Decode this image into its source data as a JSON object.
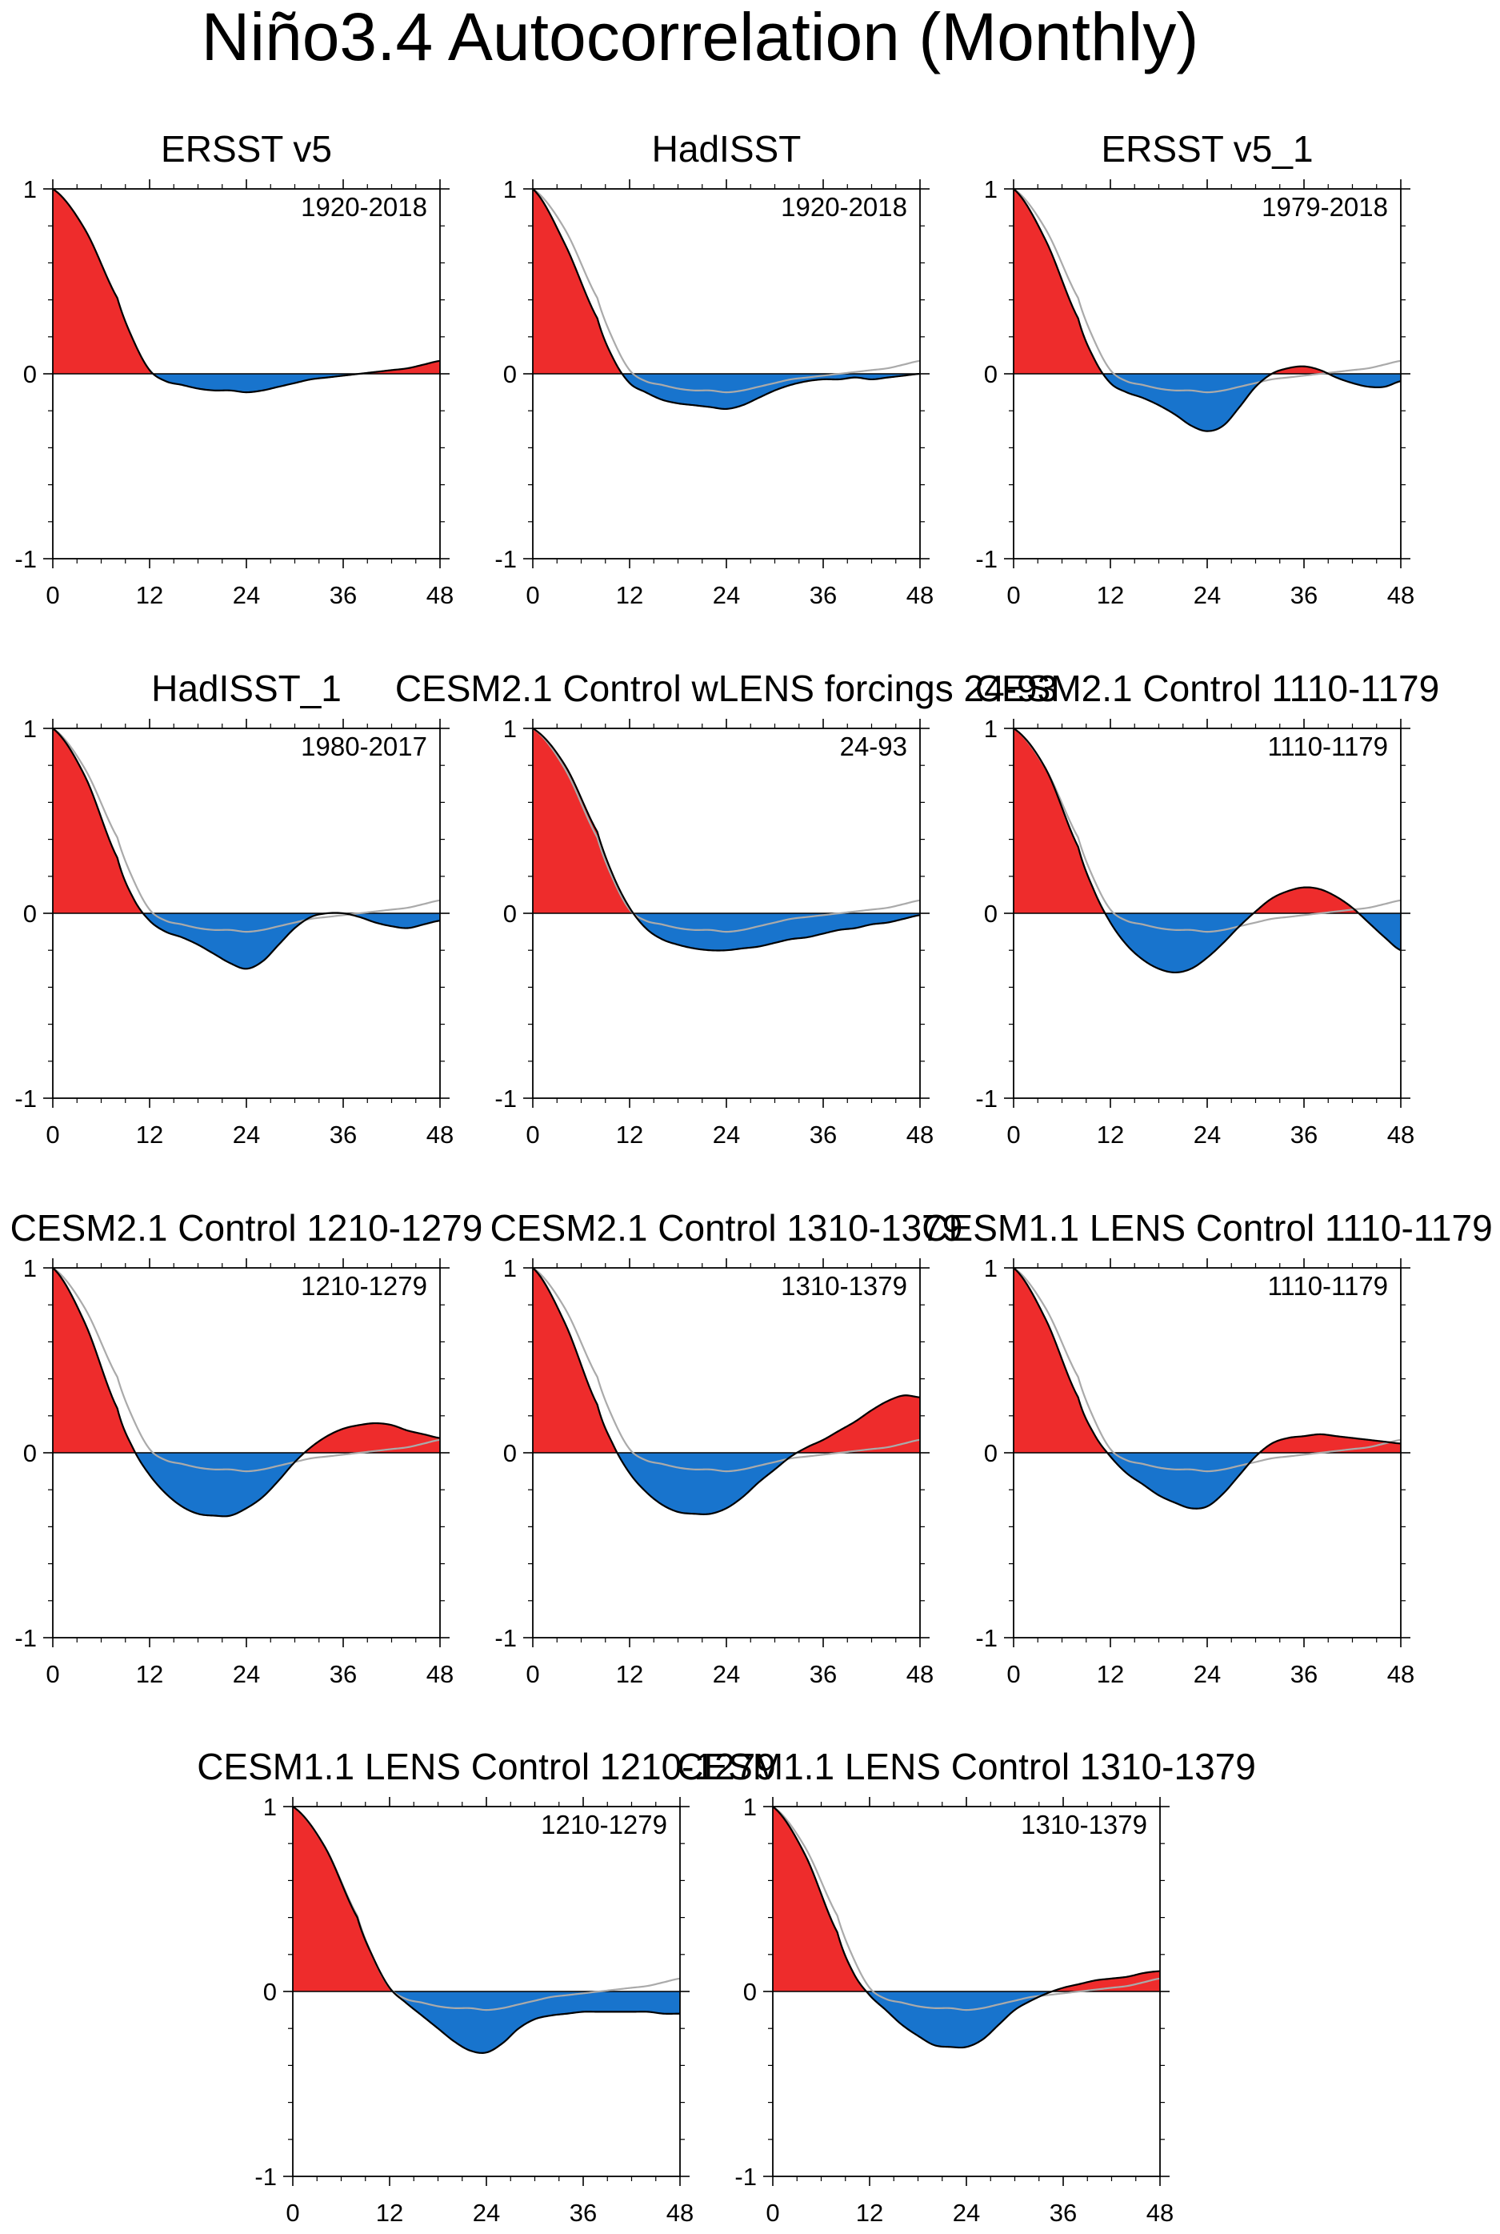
{
  "figure": {
    "title": "Niño3.4 Autocorrelation (Monthly)"
  },
  "colors": {
    "positive": "#ee2c2c",
    "negative": "#1874cd",
    "curve": "#000000",
    "reference": "#aaaaaa"
  },
  "axes": {
    "x_ticks": [
      0,
      12,
      24,
      36,
      48
    ],
    "y_ticks": [
      -1,
      0,
      1
    ],
    "xlim": [
      0,
      48
    ],
    "ylim": [
      -1,
      1
    ]
  },
  "chart_data": [
    {
      "type": "area",
      "title": "ERSST v5",
      "period": "1920-2018",
      "show_reference": false,
      "x": [
        0,
        4,
        8,
        10,
        12,
        14,
        16,
        18,
        20,
        22,
        24,
        26,
        28,
        30,
        32,
        34,
        36,
        38,
        40,
        42,
        44,
        46,
        48
      ],
      "y": [
        1.0,
        0.78,
        0.41,
        0.18,
        0.02,
        -0.04,
        -0.06,
        -0.08,
        -0.09,
        -0.09,
        -0.1,
        -0.09,
        -0.07,
        -0.05,
        -0.03,
        -0.02,
        -0.01,
        0.0,
        0.01,
        0.02,
        0.03,
        0.05,
        0.07
      ]
    },
    {
      "type": "area",
      "title": "HadISST",
      "period": "1920-2018",
      "show_reference": true,
      "x": [
        0,
        4,
        8,
        10,
        12,
        14,
        16,
        18,
        20,
        22,
        24,
        26,
        28,
        30,
        32,
        34,
        36,
        38,
        40,
        42,
        44,
        46,
        48
      ],
      "y": [
        1.0,
        0.7,
        0.3,
        0.08,
        -0.05,
        -0.1,
        -0.14,
        -0.16,
        -0.17,
        -0.18,
        -0.19,
        -0.17,
        -0.13,
        -0.09,
        -0.06,
        -0.04,
        -0.03,
        -0.03,
        -0.02,
        -0.03,
        -0.02,
        -0.01,
        0.0
      ]
    },
    {
      "type": "area",
      "title": "ERSST v5_1",
      "period": "1979-2018",
      "show_reference": true,
      "x": [
        0,
        4,
        8,
        10,
        12,
        14,
        16,
        18,
        20,
        22,
        24,
        26,
        28,
        30,
        32,
        34,
        36,
        38,
        40,
        42,
        44,
        46,
        48
      ],
      "y": [
        1.0,
        0.72,
        0.3,
        0.08,
        -0.05,
        -0.1,
        -0.13,
        -0.17,
        -0.22,
        -0.28,
        -0.31,
        -0.28,
        -0.18,
        -0.07,
        0.0,
        0.03,
        0.04,
        0.02,
        -0.02,
        -0.05,
        -0.07,
        -0.07,
        -0.04
      ]
    },
    {
      "type": "area",
      "title": "HadISST_1",
      "period": "1980-2017",
      "show_reference": true,
      "x": [
        0,
        4,
        8,
        10,
        12,
        14,
        16,
        18,
        20,
        22,
        24,
        26,
        28,
        30,
        32,
        34,
        36,
        38,
        40,
        42,
        44,
        46,
        48
      ],
      "y": [
        1.0,
        0.74,
        0.3,
        0.08,
        -0.04,
        -0.1,
        -0.13,
        -0.17,
        -0.22,
        -0.27,
        -0.3,
        -0.26,
        -0.17,
        -0.08,
        -0.02,
        0.0,
        0.0,
        -0.02,
        -0.05,
        -0.07,
        -0.08,
        -0.06,
        -0.04
      ]
    },
    {
      "type": "area",
      "title": "CESM2.1 Control wLENS forcings 24-93",
      "period": "24-93",
      "show_reference": true,
      "x": [
        0,
        4,
        8,
        10,
        12,
        14,
        16,
        18,
        20,
        22,
        24,
        26,
        28,
        30,
        32,
        34,
        36,
        38,
        40,
        42,
        44,
        46,
        48
      ],
      "y": [
        1.0,
        0.8,
        0.44,
        0.2,
        0.03,
        -0.08,
        -0.14,
        -0.17,
        -0.19,
        -0.2,
        -0.2,
        -0.19,
        -0.18,
        -0.16,
        -0.14,
        -0.13,
        -0.11,
        -0.09,
        -0.08,
        -0.06,
        -0.05,
        -0.03,
        -0.01
      ]
    },
    {
      "type": "area",
      "title": "CESM2.1 Control 1110-1179",
      "period": "1110-1179",
      "show_reference": true,
      "x": [
        0,
        4,
        8,
        10,
        12,
        14,
        16,
        18,
        20,
        22,
        24,
        26,
        28,
        30,
        32,
        34,
        36,
        38,
        40,
        42,
        44,
        46,
        48
      ],
      "y": [
        1.0,
        0.78,
        0.36,
        0.12,
        -0.05,
        -0.17,
        -0.25,
        -0.3,
        -0.32,
        -0.3,
        -0.24,
        -0.16,
        -0.07,
        0.01,
        0.08,
        0.12,
        0.14,
        0.13,
        0.09,
        0.03,
        -0.05,
        -0.13,
        -0.2
      ]
    },
    {
      "type": "area",
      "title": "CESM2.1 Control 1210-1279",
      "period": "1210-1279",
      "show_reference": true,
      "x": [
        0,
        4,
        8,
        10,
        12,
        14,
        16,
        18,
        20,
        22,
        24,
        26,
        28,
        30,
        32,
        34,
        36,
        38,
        40,
        42,
        44,
        46,
        48
      ],
      "y": [
        1.0,
        0.7,
        0.24,
        0.02,
        -0.12,
        -0.22,
        -0.29,
        -0.33,
        -0.34,
        -0.34,
        -0.3,
        -0.24,
        -0.15,
        -0.05,
        0.03,
        0.09,
        0.13,
        0.15,
        0.16,
        0.15,
        0.12,
        0.1,
        0.08
      ]
    },
    {
      "type": "area",
      "title": "CESM2.1 Control 1310-1379",
      "period": "1310-1379",
      "show_reference": true,
      "x": [
        0,
        4,
        8,
        10,
        12,
        14,
        16,
        18,
        20,
        22,
        24,
        26,
        28,
        30,
        32,
        34,
        36,
        38,
        40,
        42,
        44,
        46,
        48
      ],
      "y": [
        1.0,
        0.7,
        0.26,
        0.04,
        -0.11,
        -0.21,
        -0.28,
        -0.32,
        -0.33,
        -0.33,
        -0.3,
        -0.24,
        -0.16,
        -0.09,
        -0.02,
        0.03,
        0.07,
        0.12,
        0.17,
        0.23,
        0.28,
        0.31,
        0.3
      ]
    },
    {
      "type": "area",
      "title": "CESM1.1 LENS Control 1110-1179",
      "period": "1110-1179",
      "show_reference": true,
      "x": [
        0,
        4,
        8,
        10,
        12,
        14,
        16,
        18,
        20,
        22,
        24,
        26,
        28,
        30,
        32,
        34,
        36,
        38,
        40,
        42,
        44,
        46,
        48
      ],
      "y": [
        1.0,
        0.72,
        0.3,
        0.1,
        -0.02,
        -0.11,
        -0.17,
        -0.23,
        -0.27,
        -0.3,
        -0.29,
        -0.22,
        -0.12,
        -0.02,
        0.05,
        0.08,
        0.09,
        0.1,
        0.09,
        0.08,
        0.07,
        0.06,
        0.05
      ]
    },
    {
      "type": "area",
      "title": "CESM1.1 LENS Control 1210-1279",
      "period": "1210-1279",
      "show_reference": true,
      "x": [
        0,
        4,
        8,
        10,
        12,
        14,
        16,
        18,
        20,
        22,
        24,
        26,
        28,
        30,
        32,
        34,
        36,
        38,
        40,
        42,
        44,
        46,
        48
      ],
      "y": [
        1.0,
        0.78,
        0.4,
        0.18,
        0.02,
        -0.06,
        -0.13,
        -0.2,
        -0.27,
        -0.32,
        -0.33,
        -0.28,
        -0.2,
        -0.15,
        -0.13,
        -0.12,
        -0.11,
        -0.11,
        -0.11,
        -0.11,
        -0.11,
        -0.12,
        -0.12
      ]
    },
    {
      "type": "area",
      "title": "CESM1.1 LENS Control 1310-1379",
      "period": "1310-1379",
      "show_reference": true,
      "x": [
        0,
        4,
        8,
        10,
        12,
        14,
        16,
        18,
        20,
        22,
        24,
        26,
        28,
        30,
        32,
        34,
        36,
        38,
        40,
        42,
        44,
        46,
        48
      ],
      "y": [
        1.0,
        0.74,
        0.32,
        0.1,
        -0.02,
        -0.1,
        -0.18,
        -0.24,
        -0.29,
        -0.3,
        -0.3,
        -0.26,
        -0.18,
        -0.1,
        -0.05,
        -0.01,
        0.02,
        0.04,
        0.06,
        0.07,
        0.08,
        0.1,
        0.11
      ]
    }
  ],
  "reference_curve": {
    "x": [
      0,
      4,
      8,
      10,
      12,
      14,
      16,
      18,
      20,
      22,
      24,
      26,
      28,
      30,
      32,
      34,
      36,
      38,
      40,
      42,
      44,
      46,
      48
    ],
    "y": [
      1.0,
      0.78,
      0.41,
      0.18,
      0.02,
      -0.04,
      -0.06,
      -0.08,
      -0.09,
      -0.09,
      -0.1,
      -0.09,
      -0.07,
      -0.05,
      -0.03,
      -0.02,
      -0.01,
      0.0,
      0.01,
      0.02,
      0.03,
      0.05,
      0.07
    ]
  }
}
